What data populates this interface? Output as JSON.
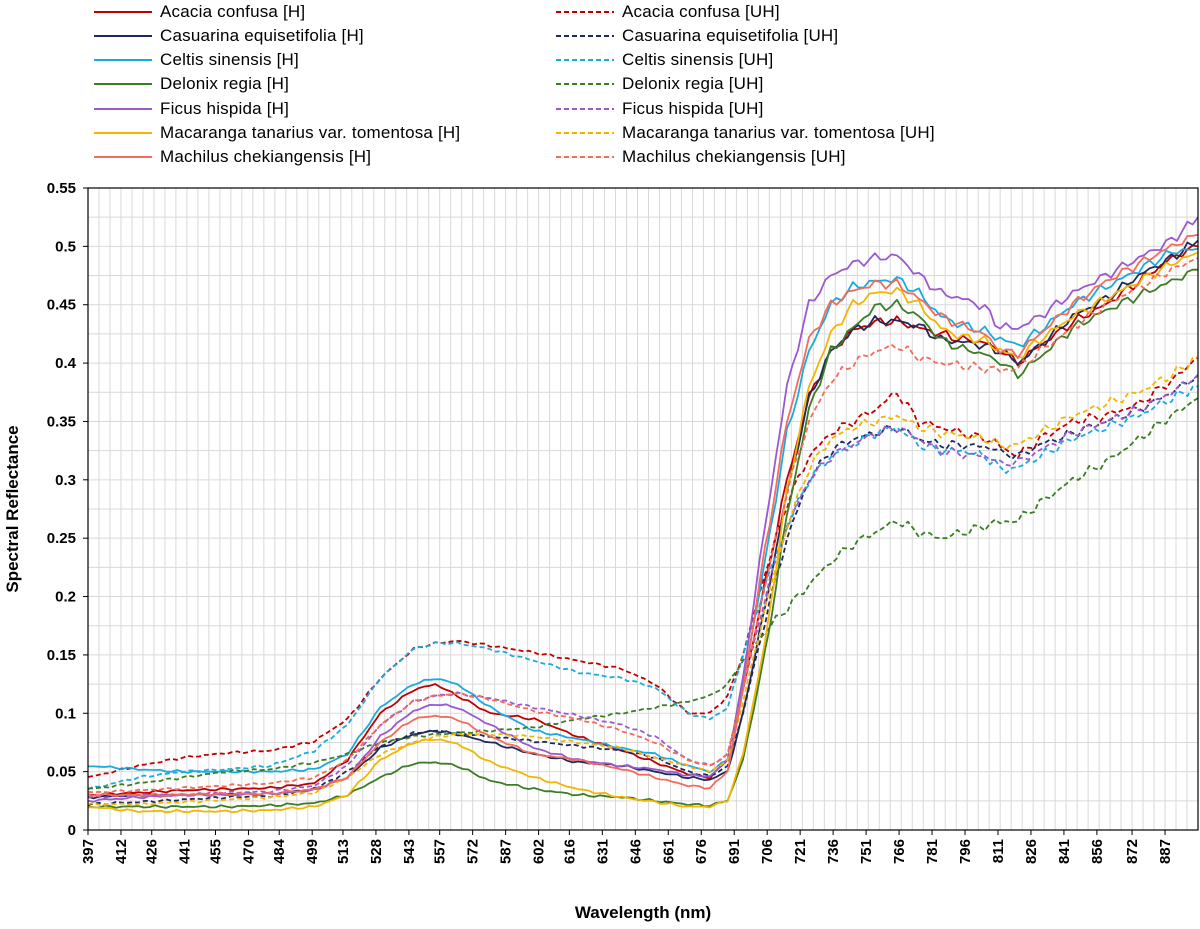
{
  "chart_data": {
    "type": "line",
    "xlabel": "Wavelength (nm)",
    "ylabel": "Spectral Reflectance",
    "xlim": [
      397,
      902
    ],
    "ylim": [
      0,
      0.55
    ],
    "yticks": [
      0,
      0.05,
      0.1,
      0.15,
      0.2,
      0.25,
      0.3,
      0.35,
      0.4,
      0.45,
      0.5,
      0.55
    ],
    "ytick_labels": [
      "0",
      "0.05",
      "0.1",
      "0.15",
      "0.2",
      "0.25",
      "0.3",
      "0.35",
      "0.4",
      "0.45",
      "0.5",
      "0.55"
    ],
    "xticks": [
      397,
      412,
      426,
      441,
      455,
      470,
      484,
      499,
      513,
      528,
      543,
      557,
      572,
      587,
      602,
      616,
      631,
      646,
      661,
      676,
      691,
      706,
      721,
      736,
      751,
      766,
      781,
      796,
      811,
      826,
      841,
      856,
      872,
      887
    ],
    "grid": true,
    "legend_position": "top",
    "x": [
      397,
      420,
      440,
      460,
      480,
      500,
      515,
      530,
      545,
      555,
      565,
      580,
      600,
      620,
      640,
      655,
      670,
      680,
      688,
      695,
      705,
      715,
      725,
      735,
      745,
      755,
      765,
      775,
      785,
      795,
      805,
      812,
      820,
      830,
      845,
      860,
      875,
      890,
      902
    ],
    "series": [
      {
        "name": "Acacia confusa [H]",
        "color": "#C00000",
        "dash": false,
        "values": [
          0.03,
          0.032,
          0.034,
          0.035,
          0.036,
          0.04,
          0.06,
          0.1,
          0.12,
          0.125,
          0.115,
          0.1,
          0.095,
          0.08,
          0.068,
          0.058,
          0.048,
          0.045,
          0.06,
          0.12,
          0.21,
          0.3,
          0.37,
          0.41,
          0.428,
          0.435,
          0.436,
          0.43,
          0.425,
          0.42,
          0.418,
          0.41,
          0.4,
          0.415,
          0.435,
          0.45,
          0.47,
          0.49,
          0.5
        ]
      },
      {
        "name": "Acacia confusa [UH]",
        "color": "#C00000",
        "dash": true,
        "values": [
          0.045,
          0.055,
          0.062,
          0.066,
          0.068,
          0.076,
          0.095,
          0.13,
          0.155,
          0.16,
          0.162,
          0.158,
          0.152,
          0.145,
          0.138,
          0.125,
          0.1,
          0.1,
          0.115,
          0.15,
          0.22,
          0.28,
          0.32,
          0.34,
          0.35,
          0.36,
          0.375,
          0.35,
          0.345,
          0.34,
          0.335,
          0.33,
          0.32,
          0.335,
          0.35,
          0.355,
          0.365,
          0.385,
          0.405
        ]
      },
      {
        "name": "Casuarina equisetifolia [H]",
        "color": "#1F2A5C",
        "dash": false,
        "values": [
          0.028,
          0.03,
          0.03,
          0.031,
          0.031,
          0.035,
          0.045,
          0.07,
          0.082,
          0.085,
          0.082,
          0.075,
          0.065,
          0.058,
          0.055,
          0.05,
          0.045,
          0.043,
          0.05,
          0.1,
          0.19,
          0.29,
          0.37,
          0.41,
          0.428,
          0.436,
          0.436,
          0.432,
          0.42,
          0.418,
          0.415,
          0.41,
          0.4,
          0.415,
          0.44,
          0.455,
          0.475,
          0.49,
          0.505
        ]
      },
      {
        "name": "Casuarina equisetifolia [UH]",
        "color": "#1F2A5C",
        "dash": true,
        "values": [
          0.022,
          0.024,
          0.026,
          0.028,
          0.029,
          0.035,
          0.05,
          0.072,
          0.083,
          0.085,
          0.083,
          0.08,
          0.076,
          0.072,
          0.068,
          0.062,
          0.05,
          0.046,
          0.055,
          0.1,
          0.18,
          0.25,
          0.3,
          0.325,
          0.335,
          0.34,
          0.345,
          0.335,
          0.33,
          0.33,
          0.328,
          0.325,
          0.32,
          0.33,
          0.34,
          0.35,
          0.36,
          0.375,
          0.39
        ]
      },
      {
        "name": "Celtis sinensis [H]",
        "color": "#1AAAE0",
        "dash": false,
        "values": [
          0.055,
          0.052,
          0.05,
          0.05,
          0.05,
          0.052,
          0.065,
          0.105,
          0.125,
          0.13,
          0.125,
          0.105,
          0.085,
          0.078,
          0.07,
          0.065,
          0.055,
          0.05,
          0.06,
          0.125,
          0.23,
          0.34,
          0.41,
          0.45,
          0.465,
          0.47,
          0.472,
          0.46,
          0.44,
          0.432,
          0.428,
          0.42,
          0.415,
          0.428,
          0.45,
          0.465,
          0.48,
          0.495,
          0.498
        ]
      },
      {
        "name": "Celtis sinensis [UH]",
        "color": "#1AAAE0",
        "dash": true,
        "values": [
          0.035,
          0.045,
          0.05,
          0.052,
          0.055,
          0.068,
          0.09,
          0.13,
          0.155,
          0.16,
          0.16,
          0.155,
          0.145,
          0.135,
          0.13,
          0.122,
          0.1,
          0.095,
          0.105,
          0.15,
          0.21,
          0.26,
          0.3,
          0.32,
          0.33,
          0.34,
          0.345,
          0.33,
          0.325,
          0.325,
          0.32,
          0.31,
          0.31,
          0.32,
          0.335,
          0.345,
          0.355,
          0.37,
          0.38
        ]
      },
      {
        "name": "Delonix regia [H]",
        "color": "#3B7D23",
        "dash": false,
        "values": [
          0.02,
          0.02,
          0.02,
          0.02,
          0.021,
          0.023,
          0.03,
          0.045,
          0.057,
          0.058,
          0.055,
          0.042,
          0.035,
          0.03,
          0.028,
          0.025,
          0.022,
          0.021,
          0.025,
          0.06,
          0.15,
          0.27,
          0.36,
          0.41,
          0.43,
          0.448,
          0.45,
          0.44,
          0.42,
          0.412,
          0.408,
          0.4,
          0.39,
          0.405,
          0.43,
          0.445,
          0.458,
          0.47,
          0.48
        ]
      },
      {
        "name": "Delonix regia [UH]",
        "color": "#3B7D23",
        "dash": true,
        "values": [
          0.035,
          0.04,
          0.045,
          0.05,
          0.052,
          0.058,
          0.065,
          0.075,
          0.08,
          0.082,
          0.083,
          0.085,
          0.088,
          0.095,
          0.1,
          0.105,
          0.11,
          0.115,
          0.125,
          0.145,
          0.17,
          0.19,
          0.21,
          0.23,
          0.245,
          0.255,
          0.265,
          0.255,
          0.25,
          0.255,
          0.26,
          0.265,
          0.265,
          0.28,
          0.3,
          0.315,
          0.335,
          0.355,
          0.37
        ]
      },
      {
        "name": "Ficus hispida [H]",
        "color": "#9B59D0",
        "dash": false,
        "values": [
          0.025,
          0.028,
          0.03,
          0.03,
          0.031,
          0.034,
          0.045,
          0.08,
          0.102,
          0.108,
          0.105,
          0.09,
          0.07,
          0.06,
          0.055,
          0.052,
          0.047,
          0.046,
          0.06,
          0.13,
          0.26,
          0.38,
          0.45,
          0.475,
          0.485,
          0.49,
          0.492,
          0.475,
          0.46,
          0.455,
          0.448,
          0.43,
          0.43,
          0.44,
          0.46,
          0.475,
          0.49,
          0.505,
          0.525
        ]
      },
      {
        "name": "Ficus hispida [UH]",
        "color": "#9B59D0",
        "dash": true,
        "values": [
          0.028,
          0.03,
          0.03,
          0.032,
          0.033,
          0.038,
          0.055,
          0.09,
          0.11,
          0.115,
          0.117,
          0.113,
          0.105,
          0.098,
          0.09,
          0.08,
          0.06,
          0.055,
          0.065,
          0.12,
          0.2,
          0.26,
          0.3,
          0.32,
          0.33,
          0.34,
          0.345,
          0.335,
          0.325,
          0.322,
          0.32,
          0.315,
          0.315,
          0.325,
          0.34,
          0.35,
          0.36,
          0.375,
          0.39
        ]
      },
      {
        "name": "Macaranga tanarius var. tomentosa [H]",
        "color": "#F4B400",
        "dash": false,
        "values": [
          0.02,
          0.016,
          0.016,
          0.016,
          0.017,
          0.02,
          0.03,
          0.06,
          0.075,
          0.078,
          0.074,
          0.058,
          0.045,
          0.035,
          0.028,
          0.024,
          0.02,
          0.02,
          0.025,
          0.065,
          0.16,
          0.29,
          0.38,
          0.425,
          0.45,
          0.46,
          0.462,
          0.45,
          0.43,
          0.422,
          0.42,
          0.41,
          0.405,
          0.42,
          0.44,
          0.455,
          0.47,
          0.485,
          0.495
        ]
      },
      {
        "name": "Macaranga tanarius var. tomentosa [UH]",
        "color": "#F4B400",
        "dash": true,
        "values": [
          0.022,
          0.022,
          0.024,
          0.026,
          0.028,
          0.032,
          0.045,
          0.065,
          0.075,
          0.08,
          0.082,
          0.082,
          0.08,
          0.075,
          0.07,
          0.062,
          0.055,
          0.05,
          0.06,
          0.11,
          0.19,
          0.26,
          0.31,
          0.335,
          0.345,
          0.35,
          0.355,
          0.345,
          0.34,
          0.338,
          0.335,
          0.33,
          0.33,
          0.34,
          0.355,
          0.365,
          0.375,
          0.39,
          0.405
        ]
      },
      {
        "name": "Machilus chekiangensis [H]",
        "color": "#F26B5B",
        "dash": false,
        "values": [
          0.03,
          0.03,
          0.03,
          0.031,
          0.031,
          0.035,
          0.045,
          0.075,
          0.095,
          0.098,
          0.095,
          0.08,
          0.065,
          0.06,
          0.052,
          0.045,
          0.038,
          0.036,
          0.05,
          0.12,
          0.24,
          0.35,
          0.42,
          0.45,
          0.462,
          0.468,
          0.468,
          0.455,
          0.44,
          0.432,
          0.425,
          0.41,
          0.408,
          0.425,
          0.45,
          0.47,
          0.485,
          0.5,
          0.51
        ]
      },
      {
        "name": "Machilus chekiangensis [UH]",
        "color": "#F26B5B",
        "dash": true,
        "values": [
          0.032,
          0.034,
          0.036,
          0.038,
          0.04,
          0.045,
          0.06,
          0.09,
          0.11,
          0.115,
          0.117,
          0.112,
          0.102,
          0.095,
          0.085,
          0.075,
          0.06,
          0.055,
          0.065,
          0.12,
          0.21,
          0.29,
          0.35,
          0.385,
          0.4,
          0.41,
          0.415,
          0.405,
          0.4,
          0.398,
          0.395,
          0.395,
          0.395,
          0.41,
          0.43,
          0.45,
          0.465,
          0.48,
          0.49
        ]
      }
    ]
  }
}
